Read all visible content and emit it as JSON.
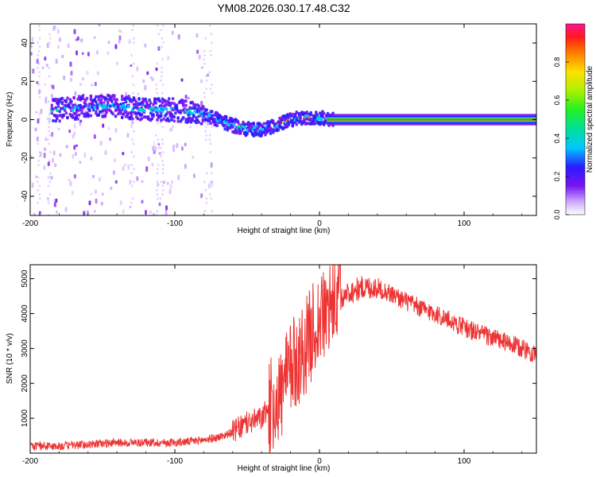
{
  "title": "YM08.2026.030.17.48.C32",
  "chart_data": [
    {
      "type": "heatmap",
      "title": "YM08.2026.030.17.48.C32",
      "xlabel": "Height of straight line (km)",
      "ylabel": "Frequency (Hz)",
      "xlim": [
        -200,
        150
      ],
      "ylim": [
        -50,
        50
      ],
      "xticks": [
        -200,
        -100,
        0,
        100
      ],
      "xtick_labels": [
        "-200",
        "-100",
        "0",
        "100"
      ],
      "yticks": [
        -40,
        -20,
        0,
        20,
        40
      ],
      "ytick_labels": [
        "-40",
        "-20",
        "0",
        "20",
        "40"
      ],
      "ridge": {
        "x": [
          -180,
          -160,
          -140,
          -120,
          -100,
          -80,
          -70,
          -60,
          -50,
          -40,
          -30,
          -20,
          -10,
          0,
          10,
          150
        ],
        "freq": [
          5,
          7,
          7,
          5,
          5,
          3,
          0,
          -3,
          -5,
          -5,
          -3,
          0,
          1,
          1,
          0,
          0
        ]
      },
      "colorbar": {
        "label": "Normalized spectral amplitude",
        "range": [
          0,
          1
        ],
        "ticks": [
          0.0,
          0.2,
          0.4,
          0.6,
          0.8
        ],
        "tick_labels": [
          "0.0",
          "0.2",
          "0.4",
          "0.6",
          "0.8"
        ]
      }
    },
    {
      "type": "line",
      "xlabel": "Height of straight line (km)",
      "ylabel": "SNR (10 * v/v)",
      "xlim": [
        -200,
        150
      ],
      "ylim": [
        0,
        5400
      ],
      "xticks": [
        -200,
        -100,
        0,
        100
      ],
      "xtick_labels": [
        "-200",
        "-100",
        "0",
        "100"
      ],
      "yticks": [
        1000,
        2000,
        3000,
        4000,
        5000
      ],
      "ytick_labels": [
        "1000",
        "2000",
        "3000",
        "4000",
        "5000"
      ],
      "color": "#ee3333",
      "series": [
        {
          "name": "SNR",
          "x": [
            -200,
            -180,
            -160,
            -140,
            -120,
            -100,
            -90,
            -80,
            -70,
            -60,
            -50,
            -40,
            -35,
            -30,
            -25,
            -20,
            -15,
            -10,
            -5,
            0,
            5,
            10,
            20,
            30,
            40,
            50,
            60,
            70,
            80,
            90,
            100,
            110,
            120,
            130,
            140,
            150
          ],
          "y": [
            200,
            200,
            250,
            300,
            300,
            300,
            330,
            380,
            450,
            600,
            850,
            1000,
            1300,
            1500,
            1800,
            2400,
            2700,
            3000,
            3500,
            3800,
            4000,
            4300,
            4600,
            4750,
            4750,
            4550,
            4350,
            4150,
            4000,
            3800,
            3600,
            3450,
            3300,
            3150,
            3000,
            2850
          ]
        }
      ]
    }
  ]
}
